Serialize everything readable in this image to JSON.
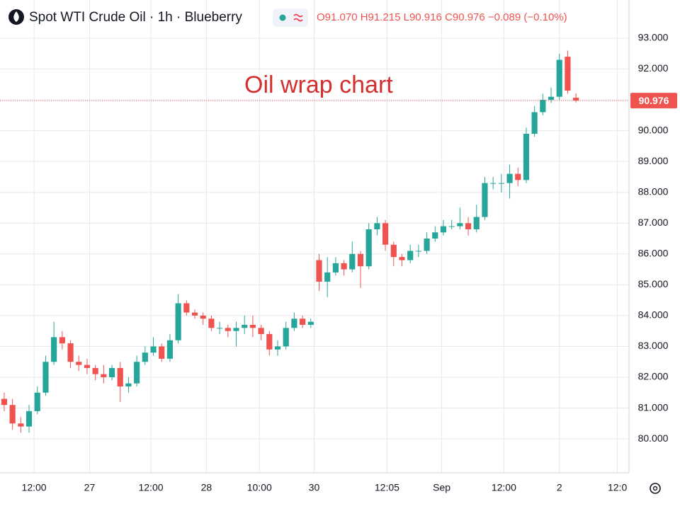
{
  "header": {
    "title": "Spot WTI Crude Oil · 1h · Blueberry",
    "ohlc": [
      "O91.070",
      "H91.215",
      "L90.916",
      "C90.976",
      "−0.089 (−0.10%)"
    ]
  },
  "chart_data": {
    "type": "candlestick",
    "annotation": "Oil wrap chart",
    "up_color": "#26a69a",
    "down_color": "#ef5350",
    "grid": true,
    "xlim": [
      -0.51,
      75.4
    ],
    "xticks": [
      {
        "value": 3.6,
        "label": "12:00"
      },
      {
        "value": 10.3,
        "label": "27"
      },
      {
        "value": 17.7,
        "label": "12:00"
      },
      {
        "value": 24.4,
        "label": "28"
      },
      {
        "value": 30.8,
        "label": "10:00"
      },
      {
        "value": 37.4,
        "label": "30"
      },
      {
        "value": 46.2,
        "label": "12:05"
      },
      {
        "value": 52.8,
        "label": "Sep"
      },
      {
        "value": 60.3,
        "label": "12:00"
      },
      {
        "value": 67,
        "label": "2"
      },
      {
        "value": 74,
        "label": "12:0"
      }
    ],
    "ylim": [
      78.9,
      94.24
    ],
    "yticks": [
      {
        "value": 80,
        "label": "80.000"
      },
      {
        "value": 81,
        "label": "81.000"
      },
      {
        "value": 82,
        "label": "82.000"
      },
      {
        "value": 83,
        "label": "83.000"
      },
      {
        "value": 84,
        "label": "84.000"
      },
      {
        "value": 85,
        "label": "85.000"
      },
      {
        "value": 86,
        "label": "86.000"
      },
      {
        "value": 87,
        "label": "87.000"
      },
      {
        "value": 88,
        "label": "88.000"
      },
      {
        "value": 89,
        "label": "89.000"
      },
      {
        "value": 90,
        "label": "90.000"
      },
      {
        "value": 91,
        "label": "91.000"
      },
      {
        "value": 92,
        "label": "92.000"
      },
      {
        "value": 93,
        "label": "93.000"
      }
    ],
    "last_price": {
      "value": 90.976,
      "label": "90.976"
    },
    "open": [
      81.3,
      81.1,
      80.5,
      80.4,
      80.9,
      81.5,
      82.5,
      83.3,
      83.1,
      82.5,
      82.4,
      82.3,
      82.1,
      82.0,
      82.3,
      81.7,
      81.8,
      82.5,
      82.8,
      83.0,
      82.6,
      83.2,
      84.4,
      84.1,
      84.0,
      83.9,
      83.6,
      83.6,
      83.5,
      83.6,
      83.7,
      83.6,
      83.4,
      82.9,
      83.0,
      83.6,
      83.9,
      83.7,
      85.8,
      85.1,
      85.4,
      85.7,
      85.5,
      86.0,
      85.6,
      86.8,
      87.0,
      86.3,
      85.9,
      85.8,
      86.1,
      86.1,
      86.5,
      86.7,
      86.9,
      86.9,
      87.0,
      86.8,
      87.2,
      88.3,
      88.3,
      88.3,
      88.6,
      88.4,
      89.9,
      90.6,
      91.0,
      91.1,
      92.4,
      91.07
    ],
    "high": [
      81.5,
      81.3,
      80.7,
      81.1,
      81.7,
      82.7,
      83.8,
      83.5,
      83.2,
      82.7,
      82.6,
      82.4,
      82.4,
      82.4,
      82.5,
      82.0,
      82.7,
      83.0,
      83.3,
      83.1,
      83.4,
      84.7,
      84.5,
      84.2,
      84.1,
      84.0,
      83.8,
      83.7,
      83.8,
      84.0,
      84.0,
      83.7,
      83.5,
      83.2,
      83.8,
      84.1,
      84.0,
      83.9,
      86.0,
      85.9,
      85.9,
      85.8,
      86.4,
      86.1,
      87.0,
      87.2,
      87.1,
      86.4,
      86.0,
      86.3,
      86.3,
      86.7,
      86.9,
      87.1,
      87.1,
      87.5,
      87.2,
      87.6,
      88.5,
      88.5,
      88.6,
      88.9,
      88.8,
      90.1,
      90.8,
      91.2,
      91.4,
      92.5,
      92.6,
      91.215
    ],
    "low": [
      80.9,
      80.3,
      80.2,
      80.2,
      80.8,
      81.4,
      82.4,
      82.9,
      82.3,
      82.2,
      82.1,
      81.9,
      81.8,
      81.9,
      81.2,
      81.5,
      81.7,
      82.4,
      82.7,
      82.5,
      82.5,
      83.1,
      84.0,
      83.9,
      83.7,
      83.5,
      83.4,
      83.3,
      83.0,
      83.4,
      83.3,
      83.2,
      82.7,
      82.7,
      82.9,
      83.5,
      83.6,
      83.6,
      84.8,
      84.6,
      85.3,
      85.3,
      85.4,
      84.9,
      85.5,
      86.6,
      86.1,
      85.6,
      85.6,
      85.7,
      85.9,
      86.0,
      86.4,
      86.6,
      86.8,
      86.8,
      86.6,
      86.7,
      87.1,
      88.1,
      88.0,
      87.8,
      88.2,
      88.3,
      89.8,
      90.5,
      90.9,
      91.0,
      91.2,
      90.916
    ],
    "close": [
      81.1,
      80.5,
      80.4,
      80.9,
      81.5,
      82.5,
      83.3,
      83.1,
      82.5,
      82.4,
      82.3,
      82.1,
      82.0,
      82.3,
      81.7,
      81.8,
      82.5,
      82.8,
      83.0,
      82.6,
      83.2,
      84.4,
      84.1,
      84.0,
      83.9,
      83.6,
      83.6,
      83.5,
      83.6,
      83.7,
      83.6,
      83.4,
      82.9,
      83.0,
      83.6,
      83.9,
      83.7,
      83.8,
      85.1,
      85.4,
      85.7,
      85.5,
      86.0,
      85.6,
      86.8,
      87.0,
      86.3,
      85.9,
      85.8,
      86.1,
      86.1,
      86.5,
      86.7,
      86.9,
      86.9,
      87.0,
      86.8,
      87.2,
      88.3,
      88.3,
      88.3,
      88.6,
      88.4,
      89.9,
      90.6,
      91.0,
      91.1,
      92.3,
      91.3,
      90.976
    ]
  }
}
